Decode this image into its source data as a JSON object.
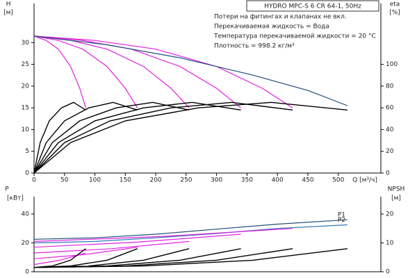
{
  "chart_data": [
    {
      "type": "line",
      "title": "HYDRO MPC-S 6 CR 64-1, 50Hz",
      "annotations": [
        "Потери на фитингах и клапанах не вкл.",
        "Перекачиваемая жидкость = Вода",
        "Температура перекачиваемой жидкости = 20 °C",
        "Плотность = 998.2 кг/м³"
      ],
      "xlabel": "Q [м³/ч]",
      "ylabel": "H",
      "ylabel_unit": "[м]",
      "y2label": "eta",
      "y2label_unit": "[%]",
      "xlim": [
        0,
        570
      ],
      "xticks": [
        0,
        50,
        100,
        150,
        200,
        250,
        300,
        350,
        400,
        450,
        500
      ],
      "ylim": [
        0,
        39
      ],
      "yticks": [
        0,
        5,
        10,
        15,
        20,
        25,
        30
      ],
      "y2lim": [
        0,
        156
      ],
      "y2ticks": [
        0,
        20,
        40,
        60,
        80,
        100
      ],
      "series": [
        {
          "color": "#e020e0",
          "x": [
            0,
            20,
            40,
            60,
            75,
            85
          ],
          "values": [
            31.5,
            30.5,
            28.5,
            24.5,
            19.5,
            15
          ]
        },
        {
          "color": "#e020e0",
          "x": [
            0,
            40,
            80,
            120,
            150,
            170
          ],
          "values": [
            31.5,
            30.5,
            28.5,
            24.5,
            19.5,
            15
          ]
        },
        {
          "color": "#e020e0",
          "x": [
            0,
            60,
            120,
            180,
            225,
            255
          ],
          "values": [
            31.5,
            30.5,
            28.5,
            24.5,
            19.5,
            15
          ]
        },
        {
          "color": "#e020e0",
          "x": [
            0,
            80,
            160,
            240,
            300,
            340
          ],
          "values": [
            31.5,
            30.5,
            28.5,
            24.5,
            19.5,
            15
          ]
        },
        {
          "color": "#e020e0",
          "x": [
            0,
            100,
            200,
            300,
            375,
            425
          ],
          "values": [
            31.5,
            30.5,
            28.5,
            24.5,
            19.5,
            15
          ]
        },
        {
          "color": "#1f4e79",
          "x": [
            0,
            120,
            240,
            360,
            450,
            515
          ],
          "values": [
            31.5,
            29.5,
            26.5,
            22.5,
            19,
            15.5
          ]
        },
        {
          "color": "#000000",
          "axis": "y2",
          "x": [
            0,
            10,
            25,
            45,
            65,
            85
          ],
          "values": [
            0,
            28,
            48,
            60,
            65,
            58
          ]
        },
        {
          "color": "#000000",
          "axis": "y2",
          "x": [
            0,
            20,
            50,
            90,
            130,
            170
          ],
          "values": [
            0,
            28,
            48,
            60,
            65,
            58
          ]
        },
        {
          "color": "#000000",
          "axis": "y2",
          "x": [
            0,
            30,
            75,
            135,
            195,
            255
          ],
          "values": [
            0,
            28,
            48,
            60,
            65,
            58
          ]
        },
        {
          "color": "#000000",
          "axis": "y2",
          "x": [
            0,
            40,
            100,
            180,
            260,
            340
          ],
          "values": [
            0,
            28,
            48,
            60,
            65,
            58
          ]
        },
        {
          "color": "#000000",
          "axis": "y2",
          "x": [
            0,
            50,
            125,
            225,
            325,
            425
          ],
          "values": [
            0,
            28,
            48,
            60,
            65,
            58
          ]
        },
        {
          "color": "#000000",
          "axis": "y2",
          "x": [
            0,
            60,
            150,
            270,
            390,
            515
          ],
          "values": [
            0,
            28,
            48,
            60,
            65,
            58
          ]
        }
      ]
    },
    {
      "type": "line",
      "ylabel": "P",
      "ylabel_unit": "[кВт]",
      "y2label": "NPSH",
      "y2label_unit": "[м]",
      "xlim": [
        0,
        570
      ],
      "ylim": [
        0,
        52
      ],
      "yticks": [
        0,
        20,
        40
      ],
      "y2lim": [
        0,
        26
      ],
      "y2ticks": [
        0,
        10,
        20
      ],
      "series": [
        {
          "name": "P1",
          "color": "#1f4e79",
          "x": [
            0,
            100,
            200,
            300,
            400,
            515
          ],
          "values": [
            22.5,
            23.5,
            26,
            29.5,
            33,
            36
          ]
        },
        {
          "name": "P2",
          "color": "#2e75b6",
          "x": [
            0,
            100,
            200,
            300,
            400,
            515
          ],
          "values": [
            20,
            21,
            23.5,
            26.5,
            30,
            32.5
          ]
        },
        {
          "color": "#e020e0",
          "x": [
            0,
            42.5,
            85
          ],
          "values": [
            5,
            8,
            13
          ]
        },
        {
          "color": "#e020e0",
          "x": [
            0,
            85,
            170
          ],
          "values": [
            9,
            12,
            17
          ]
        },
        {
          "color": "#e020e0",
          "x": [
            0,
            127.5,
            255
          ],
          "values": [
            13,
            16,
            21
          ]
        },
        {
          "color": "#e020e0",
          "x": [
            0,
            170,
            340
          ],
          "values": [
            17,
            20.5,
            26
          ]
        },
        {
          "color": "#e020e0",
          "x": [
            0,
            212.5,
            425
          ],
          "values": [
            21,
            24.5,
            30
          ]
        },
        {
          "color": "#000000",
          "axis": "y2",
          "x": [
            0,
            30,
            60,
            85
          ],
          "values": [
            1.5,
            2,
            4,
            8
          ]
        },
        {
          "color": "#000000",
          "axis": "y2",
          "x": [
            0,
            60,
            120,
            170
          ],
          "values": [
            1.5,
            2,
            4,
            8
          ]
        },
        {
          "color": "#000000",
          "axis": "y2",
          "x": [
            0,
            90,
            180,
            255
          ],
          "values": [
            1.5,
            2,
            4,
            8
          ]
        },
        {
          "color": "#000000",
          "axis": "y2",
          "x": [
            0,
            120,
            240,
            340
          ],
          "values": [
            1.5,
            2,
            4,
            8
          ]
        },
        {
          "color": "#000000",
          "axis": "y2",
          "x": [
            0,
            150,
            300,
            425
          ],
          "values": [
            1.5,
            2,
            4,
            8
          ]
        },
        {
          "color": "#000000",
          "axis": "y2",
          "x": [
            0,
            180,
            360,
            515
          ],
          "values": [
            1.5,
            2,
            4,
            8
          ]
        }
      ]
    }
  ]
}
